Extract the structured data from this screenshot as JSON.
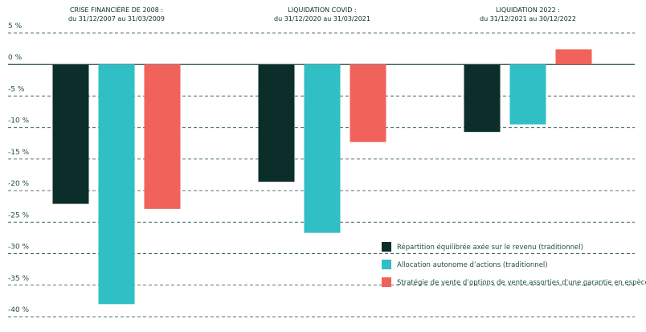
{
  "chart_data": {
    "type": "bar",
    "categories": [
      "CRISE FINANCIÈRE DE 2008 :",
      "LIQUIDATION COVID :",
      "LIQUIDATION 2022 :"
    ],
    "category_subtitles": [
      "du 31/12/2007 au 31/03/2009",
      "du 31/12/2020 au 31/03/2021",
      "du 31/12/2021 au 30/12/2022"
    ],
    "series": [
      {
        "name": "Répartition équilibrée axée sur le revenu (traditionnel)",
        "color": "#0b2e2b",
        "values": [
          -22.1,
          -18.6,
          -10.7
        ]
      },
      {
        "name": "Allocation autonome d’actions (traditionnel)",
        "color": "#2fbfc4",
        "values": [
          -38.0,
          -26.7,
          -9.5
        ]
      },
      {
        "name": "Stratégie de vente d’options de vente assorties d’une garantie en espèces",
        "color": "#f0625a",
        "values": [
          -22.9,
          -12.3,
          2.4
        ]
      }
    ],
    "ylim": [
      -40,
      5
    ],
    "yticks": [
      {
        "value": 5,
        "label": "5 %"
      },
      {
        "value": 0,
        "label": "0 %"
      },
      {
        "value": -5,
        "label": "-5 %"
      },
      {
        "value": -10,
        "label": "-10 %"
      },
      {
        "value": -15,
        "label": "-15 %"
      },
      {
        "value": -20,
        "label": "-20 %"
      },
      {
        "value": -25,
        "label": "-25 %"
      },
      {
        "value": -30,
        "label": "-30 %"
      },
      {
        "value": -35,
        "label": "-35 %"
      },
      {
        "value": -40,
        "label": "-40 %"
      }
    ],
    "grid": true
  }
}
